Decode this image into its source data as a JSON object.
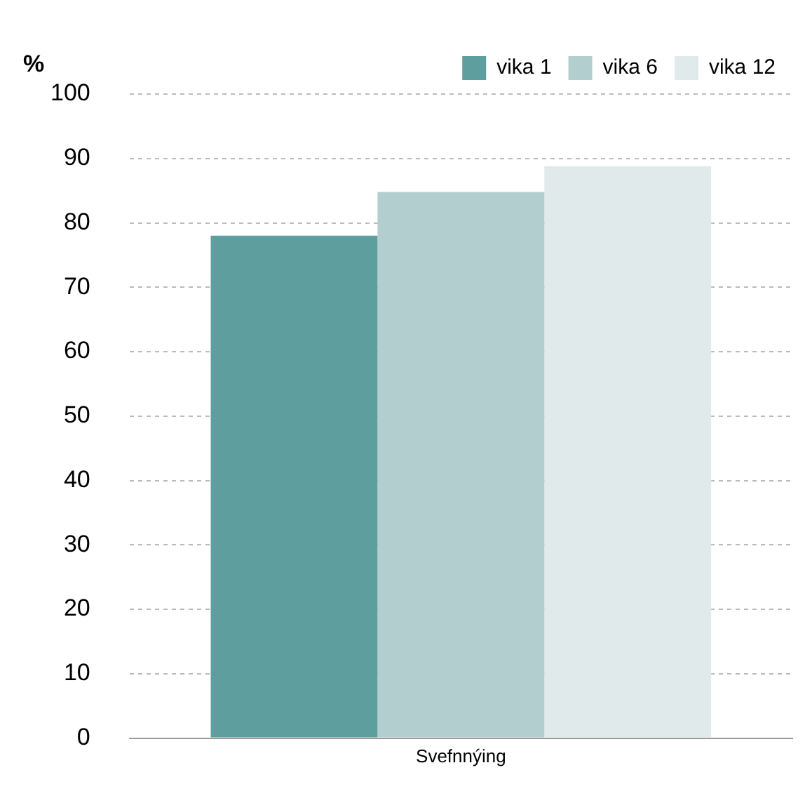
{
  "chart_data": {
    "type": "bar",
    "ylabel": "%",
    "categories": [
      "Svefnnýing"
    ],
    "series": [
      {
        "name": "vika 1",
        "color": "#5f9e9e",
        "values": [
          78
        ]
      },
      {
        "name": "vika 6",
        "color": "#b3cecf",
        "values": [
          84.8
        ]
      },
      {
        "name": "vika 12",
        "color": "#e1eaeb",
        "values": [
          88.8
        ]
      }
    ],
    "ylim": [
      0,
      100
    ],
    "yticks": [
      0,
      10,
      20,
      30,
      40,
      50,
      60,
      70,
      80,
      90,
      100
    ],
    "grid": "y",
    "legend": "top right"
  }
}
